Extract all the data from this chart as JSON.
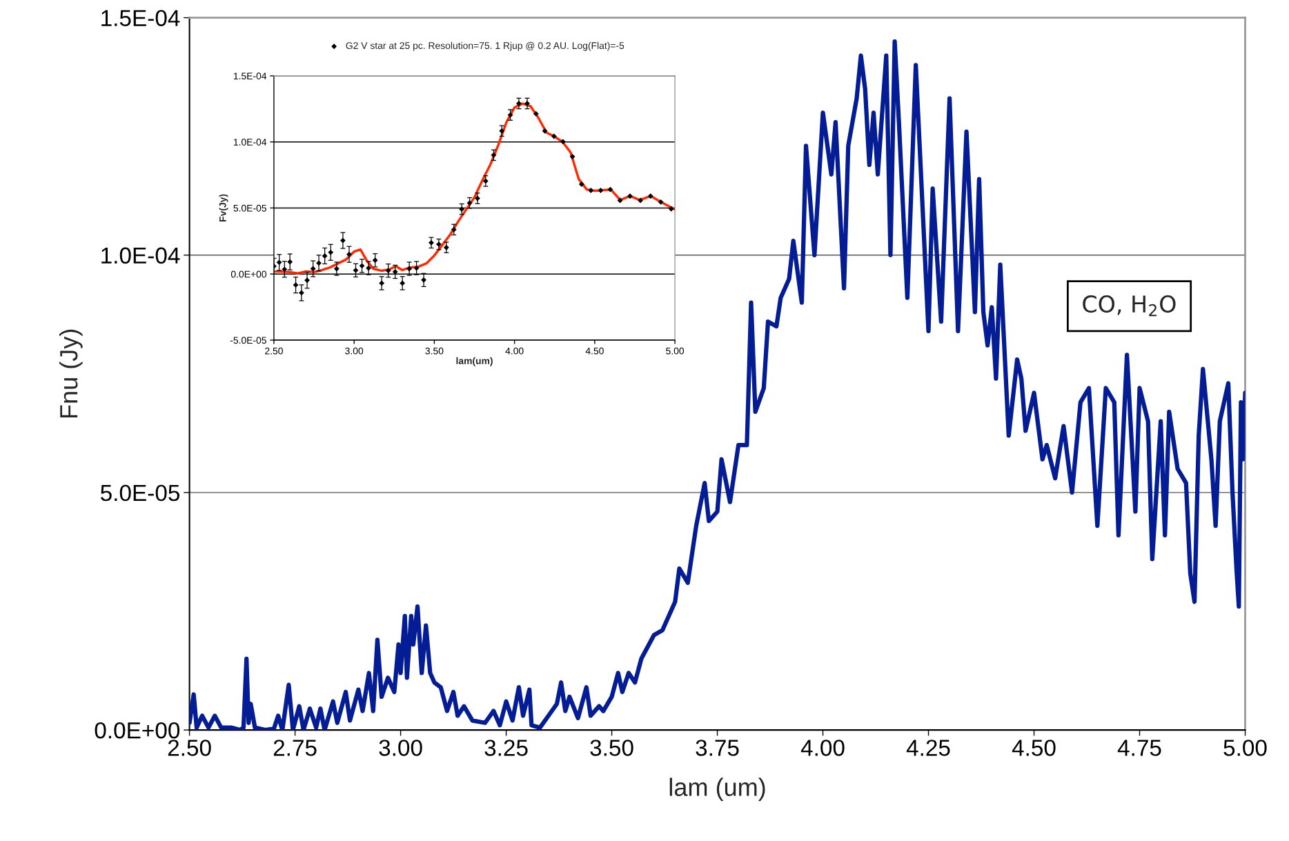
{
  "chart_data": [
    {
      "type": "line",
      "xlabel": "lam (um)",
      "ylabel": "Fnu (Jy)",
      "annotations": [
        "CO, H$_{2}$O"
      ],
      "grid": "y",
      "legend": false,
      "xlim": [
        2.5,
        5.0
      ],
      "xticks": [
        {
          "value": 2.5,
          "label": "2.50"
        },
        {
          "value": 2.75,
          "label": "2.75"
        },
        {
          "value": 3.0,
          "label": "3.00"
        },
        {
          "value": 3.25,
          "label": "3.25"
        },
        {
          "value": 3.5,
          "label": "3.50"
        },
        {
          "value": 3.75,
          "label": "3.75"
        },
        {
          "value": 4.0,
          "label": "4.00"
        },
        {
          "value": 4.25,
          "label": "4.25"
        },
        {
          "value": 4.5,
          "label": "4.50"
        },
        {
          "value": 4.75,
          "label": "4.75"
        },
        {
          "value": 5.0,
          "label": "5.00"
        }
      ],
      "ylim": [
        0,
        0.00015
      ],
      "yticks": [
        {
          "value": 0,
          "label": "0.0E+00"
        },
        {
          "value": 5e-05,
          "label": "5.0E-05"
        },
        {
          "value": 0.0001,
          "label": "1.0E-04"
        },
        {
          "value": 0.00015,
          "label": "1.5E-04"
        }
      ],
      "series": [
        {
          "color": "#041c94",
          "line_style": "solid",
          "x": [
            2.5,
            2.51,
            2.517,
            2.53,
            2.545,
            2.56,
            2.575,
            2.6,
            2.62,
            2.628,
            2.635,
            2.64,
            2.645,
            2.655,
            2.68,
            2.7,
            2.71,
            2.72,
            2.735,
            2.745,
            2.76,
            2.77,
            2.785,
            2.8,
            2.81,
            2.82,
            2.84,
            2.85,
            2.87,
            2.88,
            2.9,
            2.91,
            2.925,
            2.935,
            2.945,
            2.955,
            2.97,
            2.985,
            2.995,
            3.0,
            3.01,
            3.015,
            3.025,
            3.03,
            3.04,
            3.05,
            3.06,
            3.07,
            3.08,
            3.095,
            3.11,
            3.125,
            3.135,
            3.15,
            3.17,
            3.2,
            3.22,
            3.235,
            3.25,
            3.265,
            3.28,
            3.29,
            3.305,
            3.31,
            3.33,
            3.35,
            3.37,
            3.38,
            3.39,
            3.4,
            3.42,
            3.44,
            3.45,
            3.47,
            3.48,
            3.5,
            3.515,
            3.525,
            3.54,
            3.555,
            3.57,
            3.6,
            3.62,
            3.65,
            3.66,
            3.68,
            3.7,
            3.72,
            3.73,
            3.75,
            3.76,
            3.78,
            3.8,
            3.82,
            3.83,
            3.84,
            3.86,
            3.87,
            3.89,
            3.9,
            3.92,
            3.93,
            3.95,
            3.96,
            3.98,
            4.0,
            4.02,
            4.03,
            4.05,
            4.06,
            4.08,
            4.09,
            4.1,
            4.11,
            4.12,
            4.13,
            4.15,
            4.16,
            4.17,
            4.18,
            4.2,
            4.22,
            4.25,
            4.26,
            4.28,
            4.3,
            4.32,
            4.34,
            4.36,
            4.37,
            4.38,
            4.39,
            4.4,
            4.41,
            4.42,
            4.44,
            4.46,
            4.47,
            4.48,
            4.5,
            4.52,
            4.53,
            4.55,
            4.57,
            4.59,
            4.61,
            4.63,
            4.65,
            4.67,
            4.69,
            4.7,
            4.72,
            4.74,
            4.75,
            4.77,
            4.78,
            4.8,
            4.81,
            4.82,
            4.84,
            4.86,
            4.87,
            4.88,
            4.89,
            4.9,
            4.92,
            4.93,
            4.94,
            4.96,
            4.97,
            4.98,
            4.985,
            4.99,
            4.995,
            5.0
          ],
          "values": [
            1.5e-06,
            7.5e-06,
            5e-07,
            3e-06,
            5e-07,
            3e-06,
            5e-07,
            5e-07,
            0,
            5e-07,
            1.5e-05,
            1.5e-06,
            5.5e-06,
            5e-07,
            0,
            3e-07,
            3e-06,
            0,
            9.5e-06,
            0,
            5e-06,
            0,
            4.5e-06,
            5e-07,
            4.5e-06,
            0,
            6e-06,
            1.5e-06,
            8e-06,
            2e-06,
            8.5e-06,
            4e-06,
            1.2e-05,
            4e-06,
            1.9e-05,
            7e-06,
            1.1e-05,
            8e-06,
            1.8e-05,
            1.2e-05,
            2.4e-05,
            1.1e-05,
            2.4e-05,
            1.8e-05,
            2.6e-05,
            1.2e-05,
            2.2e-05,
            1.2e-05,
            1e-05,
            9e-06,
            4e-06,
            8e-06,
            3e-06,
            5e-06,
            2e-06,
            1.5e-06,
            4e-06,
            1e-06,
            6e-06,
            2e-06,
            9e-06,
            3e-06,
            8.5e-06,
            1e-06,
            5e-07,
            3e-06,
            5.5e-06,
            1e-05,
            4e-06,
            7e-06,
            2.5e-06,
            9e-06,
            3e-06,
            5e-06,
            4e-06,
            7e-06,
            1.2e-05,
            8e-06,
            1.2e-05,
            1e-05,
            1.5e-05,
            2e-05,
            2.1e-05,
            2.7e-05,
            3.4e-05,
            3.1e-05,
            4.3e-05,
            5.2e-05,
            4.4e-05,
            4.6e-05,
            5.7e-05,
            4.8e-05,
            6e-05,
            6e-05,
            9e-05,
            6.7e-05,
            7.2e-05,
            8.6e-05,
            8.5e-05,
            9.1e-05,
            9.5e-05,
            0.000103,
            9e-05,
            0.000123,
            0.0001,
            0.00013,
            0.000117,
            0.000128,
            9.3e-05,
            0.000123,
            0.000133,
            0.000142,
            0.000135,
            0.000119,
            0.00013,
            0.000117,
            0.000142,
            0.0001,
            0.000145,
            0.000128,
            9.1e-05,
            0.00014,
            8.4e-05,
            0.000114,
            8.6e-05,
            0.000133,
            8.4e-05,
            0.000126,
            8.8e-05,
            0.000116,
            8.8e-05,
            8.1e-05,
            8.9e-05,
            7.4e-05,
            9.8e-05,
            6.2e-05,
            7.8e-05,
            7.4e-05,
            6.3e-05,
            7.1e-05,
            5.7e-05,
            6e-05,
            5.3e-05,
            6.4e-05,
            5e-05,
            6.9e-05,
            7.2e-05,
            4.3e-05,
            7.2e-05,
            6.9e-05,
            4.1e-05,
            7.9e-05,
            4.6e-05,
            7.2e-05,
            6.5e-05,
            3.6e-05,
            6.5e-05,
            4.1e-05,
            6.7e-05,
            5.5e-05,
            5.2e-05,
            3.3e-05,
            2.7e-05,
            6.2e-05,
            7.6e-05,
            5.7e-05,
            4.3e-05,
            6.5e-05,
            7.3e-05,
            5e-05,
            3.3e-05,
            2.6e-05,
            6.9e-05,
            5.7e-05,
            7.1e-05
          ]
        }
      ]
    },
    {
      "type": "scatter",
      "xlabel": "lam(um)",
      "ylabel": "Fv(Jy)",
      "grid": "y",
      "legend": "top",
      "xlim": [
        2.5,
        5.0
      ],
      "xticks": [
        {
          "value": 2.5,
          "label": "2.50"
        },
        {
          "value": 3.0,
          "label": "3.00"
        },
        {
          "value": 3.5,
          "label": "3.50"
        },
        {
          "value": 4.0,
          "label": "4.00"
        },
        {
          "value": 4.5,
          "label": "4.50"
        },
        {
          "value": 5.0,
          "label": "5.00"
        }
      ],
      "ylim": [
        -5e-05,
        0.00015
      ],
      "yticks": [
        {
          "value": -5e-05,
          "label": "-5.0E-05"
        },
        {
          "value": 0,
          "label": "0.0E+00"
        },
        {
          "value": 5e-05,
          "label": "5.0E-05"
        },
        {
          "value": 0.0001,
          "label": "1.0E-04"
        },
        {
          "value": 0.00015,
          "label": "1.5E-04"
        }
      ],
      "series": [
        {
          "type": "line",
          "color": "#ff2a00",
          "line_style": "solid",
          "x": [
            2.5,
            2.6,
            2.65,
            2.7,
            2.75,
            2.8,
            2.85,
            2.9,
            2.95,
            3.0,
            3.04,
            3.08,
            3.12,
            3.17,
            3.22,
            3.26,
            3.3,
            3.35,
            3.4,
            3.45,
            3.5,
            3.55,
            3.6,
            3.65,
            3.7,
            3.75,
            3.8,
            3.85,
            3.9,
            3.95,
            4.0,
            4.05,
            4.1,
            4.15,
            4.2,
            4.25,
            4.3,
            4.35,
            4.4,
            4.45,
            4.5,
            4.6,
            4.66,
            4.72,
            4.78,
            4.85,
            4.92,
            5.0
          ],
          "values": [
            2e-06,
            1.5e-06,
            5e-07,
            2e-06,
            1.5e-06,
            3e-06,
            5e-06,
            8e-06,
            1.1e-05,
            1.7e-05,
            1.85e-05,
            1e-05,
            4e-06,
            2.5e-06,
            3.5e-06,
            6e-06,
            3e-06,
            5e-06,
            5.5e-06,
            8e-06,
            1.4e-05,
            2.2e-05,
            3e-05,
            4e-05,
            4.9e-05,
            5.8e-05,
            7.1e-05,
            8.3e-05,
            9.8e-05,
            0.000115,
            0.000126,
            0.000129,
            0.000127,
            0.000118,
            0.000107,
            0.000104,
            0.0001,
            9.2e-05,
            7.2e-05,
            6.4e-05,
            6.3e-05,
            6.4e-05,
            5.6e-05,
            5.9e-05,
            5.6e-05,
            5.9e-05,
            5.4e-05,
            4.9e-05
          ]
        },
        {
          "name": "G2 V star at 25 pc. Resolution=75. 1 Rjup @ 0.2 AU. Log(Flat)=-5",
          "type": "scatter",
          "color": "#000000",
          "marker": "diamond",
          "x": [
            2.5,
            2.533,
            2.566,
            2.6,
            2.636,
            2.672,
            2.707,
            2.744,
            2.78,
            2.817,
            2.854,
            2.891,
            2.93,
            2.969,
            3.01,
            3.049,
            3.09,
            3.131,
            3.172,
            3.213,
            3.256,
            3.301,
            3.344,
            3.389,
            3.434,
            3.481,
            3.528,
            3.575,
            3.622,
            3.671,
            3.72,
            3.769,
            3.82,
            3.87,
            3.921,
            3.974,
            4.027,
            4.079,
            4.134,
            4.189,
            4.246,
            4.302,
            4.361,
            4.418,
            4.476,
            4.537,
            4.597,
            4.658,
            4.72,
            4.785,
            4.848,
            4.912,
            4.977
          ],
          "values": [
            5.9e-06,
            8.8e-06,
            3.6e-06,
            9.2e-06,
            -8.3e-06,
            -1.42e-05,
            -4.7e-06,
            4e-06,
            8.3e-06,
            1.37e-05,
            1.64e-05,
            4e-06,
            2.54e-05,
            1.49e-05,
            2.8e-06,
            6.2e-06,
            4.5e-06,
            1.04e-05,
            -6.9e-06,
            2.6e-06,
            1.7e-06,
            -6.9e-06,
            4e-06,
            4.5e-06,
            -4.5e-06,
            2.37e-05,
            2.25e-05,
            2.01e-05,
            3.36e-05,
            4.91e-05,
            5.38e-05,
            5.73e-05,
            7.04e-05,
            9e-05,
            0.0001083,
            0.0001204,
            0.0001291,
            0.0001291,
            0.0001213,
            0.0001083,
            0.0001043,
            0.0001002,
            8.89e-05,
            6.8e-05,
            6.33e-05,
            6.33e-05,
            6.4e-05,
            5.57e-05,
            5.9e-05,
            5.57e-05,
            5.9e-05,
            5.45e-05,
            4.93e-05
          ],
          "errors": [
            6e-06,
            6e-06,
            6e-06,
            6e-06,
            6e-06,
            6e-06,
            6e-06,
            6e-06,
            6e-06,
            6e-06,
            6e-06,
            5e-06,
            6e-06,
            6e-06,
            5e-06,
            5e-06,
            5e-06,
            5e-06,
            5e-06,
            5e-06,
            5e-06,
            5e-06,
            5e-06,
            5e-06,
            5e-06,
            4e-06,
            4e-06,
            4e-06,
            4e-06,
            4e-06,
            4e-06,
            4e-06,
            4e-06,
            4e-06,
            4e-06,
            4e-06,
            4e-06,
            4e-06,
            null,
            null,
            null,
            null,
            null,
            null,
            null,
            null,
            null,
            null,
            null,
            null,
            null,
            null,
            null
          ]
        }
      ]
    }
  ]
}
